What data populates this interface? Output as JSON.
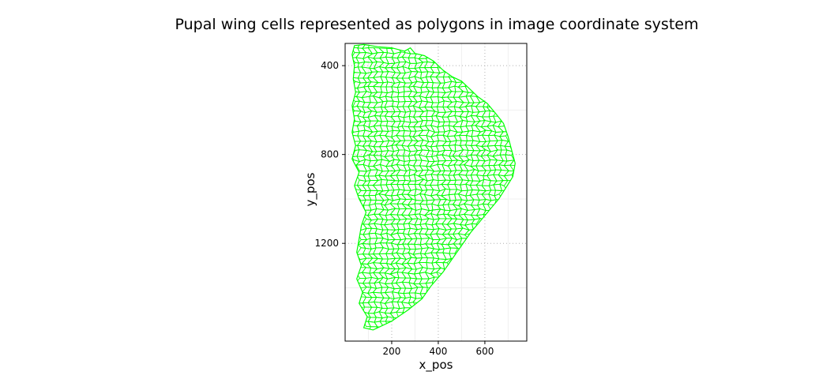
{
  "chart_data": {
    "type": "scatter",
    "title": "Pupal wing cells represented as polygons in image coordinate system",
    "xlabel": "x_pos",
    "ylabel": "y_pos",
    "xlim": [
      0,
      780
    ],
    "ylim": [
      1640,
      300
    ],
    "y_reversed": true,
    "x_ticks": [
      "200",
      "400",
      "600"
    ],
    "x_tick_values": [
      200,
      400,
      600
    ],
    "y_ticks": [
      "400",
      "800",
      "1200"
    ],
    "y_tick_values": [
      400,
      800,
      1200
    ],
    "grid": true,
    "cell_color": "#00ff00",
    "outline": [
      [
        40,
        310
      ],
      [
        80,
        305
      ],
      [
        140,
        315
      ],
      [
        200,
        320
      ],
      [
        255,
        335
      ],
      [
        280,
        320
      ],
      [
        300,
        345
      ],
      [
        340,
        355
      ],
      [
        380,
        380
      ],
      [
        420,
        420
      ],
      [
        460,
        450
      ],
      [
        500,
        470
      ],
      [
        540,
        510
      ],
      [
        570,
        540
      ],
      [
        610,
        570
      ],
      [
        650,
        620
      ],
      [
        680,
        660
      ],
      [
        700,
        720
      ],
      [
        715,
        780
      ],
      [
        730,
        840
      ],
      [
        720,
        900
      ],
      [
        690,
        950
      ],
      [
        660,
        1000
      ],
      [
        620,
        1050
      ],
      [
        580,
        1100
      ],
      [
        540,
        1150
      ],
      [
        500,
        1210
      ],
      [
        460,
        1270
      ],
      [
        420,
        1330
      ],
      [
        370,
        1390
      ],
      [
        330,
        1450
      ],
      [
        270,
        1500
      ],
      [
        200,
        1550
      ],
      [
        120,
        1590
      ],
      [
        80,
        1580
      ],
      [
        95,
        1530
      ],
      [
        60,
        1470
      ],
      [
        75,
        1420
      ],
      [
        50,
        1360
      ],
      [
        70,
        1300
      ],
      [
        50,
        1240
      ],
      [
        60,
        1180
      ],
      [
        70,
        1120
      ],
      [
        90,
        1060
      ],
      [
        60,
        1000
      ],
      [
        40,
        940
      ],
      [
        60,
        880
      ],
      [
        30,
        820
      ],
      [
        45,
        760
      ],
      [
        30,
        700
      ],
      [
        40,
        640
      ],
      [
        30,
        580
      ],
      [
        45,
        520
      ],
      [
        35,
        460
      ],
      [
        40,
        400
      ],
      [
        30,
        350
      ]
    ]
  }
}
